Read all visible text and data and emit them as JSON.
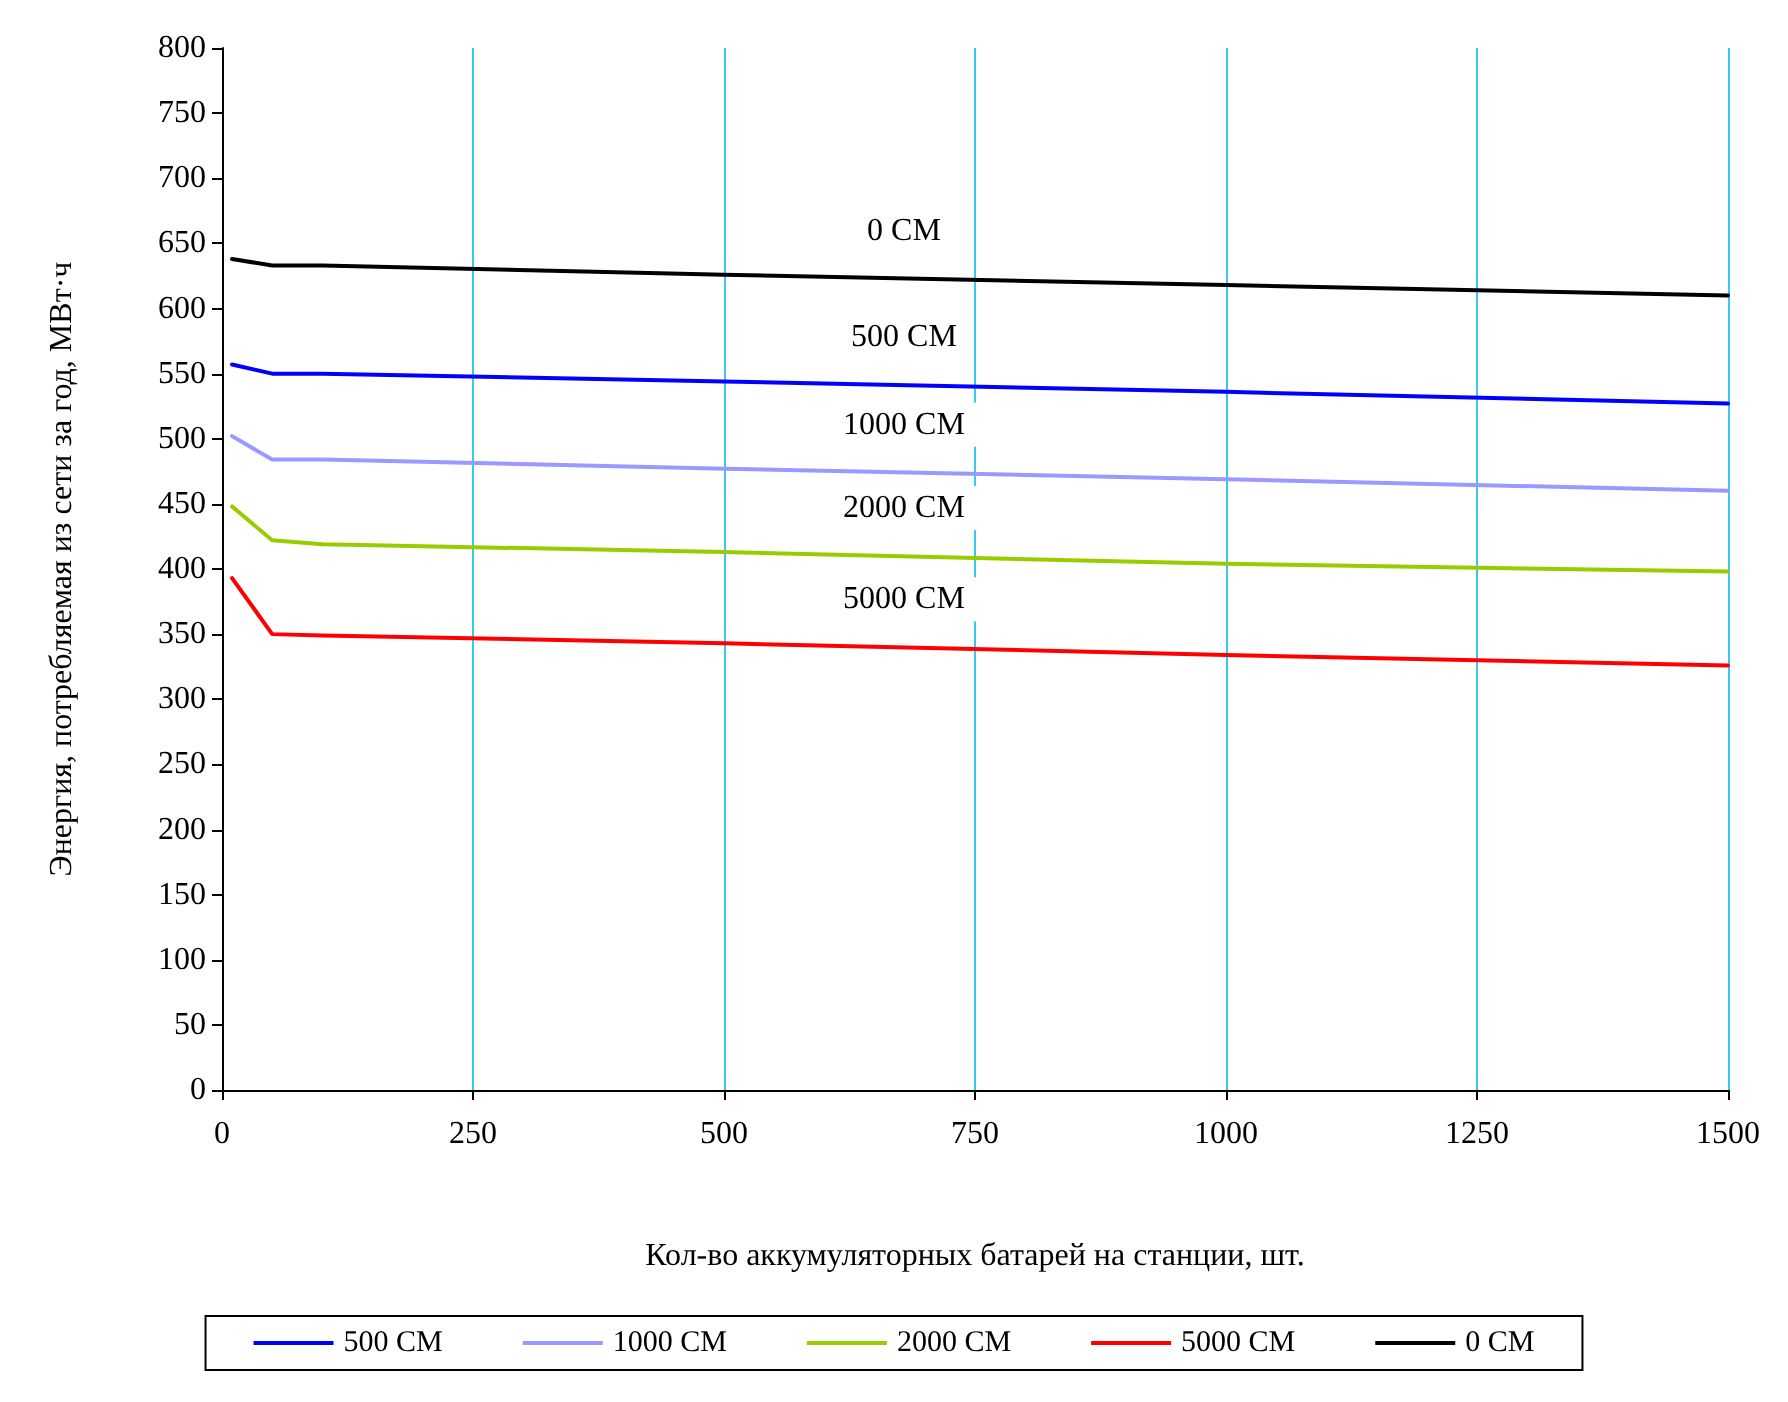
{
  "chart_data": {
    "type": "line",
    "xlabel": "Кол-во аккумуляторных батарей на станции, шт.",
    "ylabel": "Энергия, потребляемая из сети за год, МВт·ч",
    "xlim": [
      0,
      1500
    ],
    "xticks": [
      0,
      250,
      500,
      750,
      1000,
      1250,
      1500
    ],
    "ylim": [
      0,
      800
    ],
    "yticks": [
      0,
      50,
      100,
      150,
      200,
      250,
      300,
      350,
      400,
      450,
      500,
      550,
      600,
      650,
      700,
      750,
      800
    ],
    "grid": "x",
    "legend": "bottom",
    "marker": "none",
    "line_style": "solid",
    "series": [
      {
        "name": "500 СМ",
        "color": "#0000ff",
        "x": [
          10,
          50,
          100,
          500,
          1000,
          1500
        ],
        "values": [
          557,
          550,
          550,
          544,
          536,
          527
        ]
      },
      {
        "name": "1000 СМ",
        "color": "#9999ff",
        "x": [
          10,
          50,
          100,
          500,
          1000,
          1500
        ],
        "values": [
          502,
          484,
          484,
          477,
          469,
          460
        ]
      },
      {
        "name": "2000 СМ",
        "color": "#99cc00",
        "x": [
          10,
          50,
          100,
          500,
          1000,
          1500
        ],
        "values": [
          448,
          422,
          419,
          413,
          404,
          398
        ]
      },
      {
        "name": "5000 СМ",
        "color": "#ff0000",
        "x": [
          10,
          50,
          100,
          500,
          1000,
          1500
        ],
        "values": [
          393,
          350,
          349,
          343,
          334,
          326
        ]
      },
      {
        "name": "0 СМ",
        "color": "#000000",
        "x": [
          10,
          50,
          100,
          500,
          1000,
          1500
        ],
        "values": [
          638,
          633,
          633,
          626,
          618,
          610
        ]
      }
    ]
  }
}
